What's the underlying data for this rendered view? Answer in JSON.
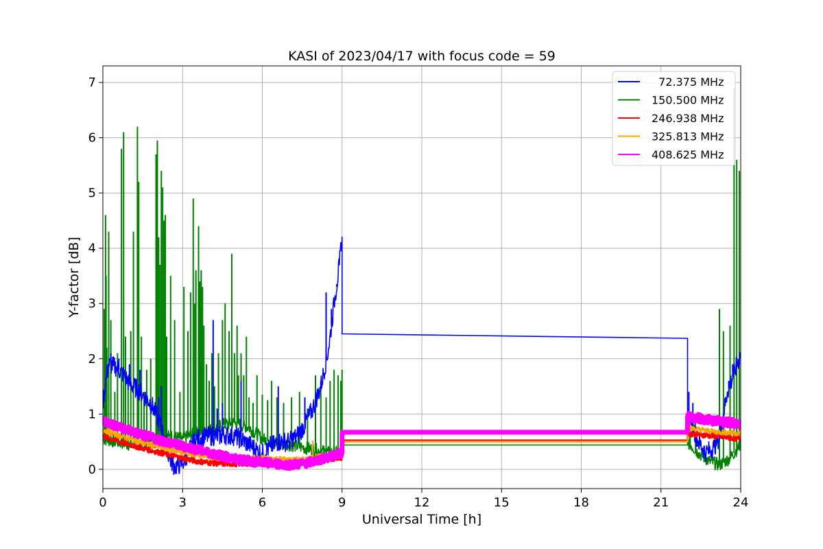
{
  "chart_data": {
    "type": "line",
    "title": "KASI of 2023/04/17 with focus code = 59",
    "xlabel": "Universal Time [h]",
    "ylabel": "Y-factor [dB]",
    "xlim": [
      0,
      24
    ],
    "ylim": [
      -0.35,
      7.3
    ],
    "xticks": [
      0,
      3,
      6,
      9,
      12,
      15,
      18,
      21,
      24
    ],
    "yticks": [
      0,
      1,
      2,
      3,
      4,
      5,
      6,
      7
    ],
    "grid": true,
    "legend_position": "top-right",
    "series": [
      {
        "name": "  72.375 MHz",
        "color": "#0000ff",
        "points": [
          [
            0,
            1.2
          ],
          [
            0.2,
            1.9
          ],
          [
            0.5,
            1.85
          ],
          [
            0.8,
            1.7
          ],
          [
            1.0,
            1.55
          ],
          [
            1.3,
            1.45
          ],
          [
            1.5,
            1.35
          ],
          [
            1.8,
            1.2
          ],
          [
            2.0,
            1.0
          ],
          [
            2.3,
            0.6
          ],
          [
            2.5,
            0.2
          ],
          [
            2.7,
            0.05
          ],
          [
            3.0,
            0.1
          ],
          [
            3.2,
            0.3
          ],
          [
            3.5,
            0.55
          ],
          [
            4.0,
            0.6
          ],
          [
            4.3,
            0.6
          ],
          [
            4.6,
            0.62
          ],
          [
            5.0,
            0.6
          ],
          [
            5.5,
            0.45
          ],
          [
            5.8,
            0.35
          ],
          [
            6.0,
            0.28
          ],
          [
            6.3,
            0.4
          ],
          [
            6.6,
            0.5
          ],
          [
            7.0,
            0.5
          ],
          [
            7.3,
            0.6
          ],
          [
            7.6,
            0.8
          ],
          [
            7.9,
            1.1
          ],
          [
            8.2,
            1.5
          ],
          [
            8.5,
            2.2
          ],
          [
            8.7,
            3.0
          ],
          [
            8.9,
            3.7
          ],
          [
            9.0,
            4.2
          ],
          [
            9.0,
            2.45
          ],
          [
            22.0,
            2.37
          ],
          [
            22.0,
            1.0
          ],
          [
            22.1,
            0.9
          ],
          [
            22.4,
            0.5
          ],
          [
            22.7,
            0.3
          ],
          [
            23.0,
            0.4
          ],
          [
            23.2,
            0.6
          ],
          [
            23.5,
            1.4
          ],
          [
            23.8,
            1.8
          ],
          [
            24.0,
            2.1
          ]
        ]
      },
      {
        "name": "150.500 MHz",
        "color": "#008000",
        "points": [
          [
            0,
            0.55
          ],
          [
            0.5,
            0.5
          ],
          [
            1.0,
            0.45
          ],
          [
            1.5,
            0.5
          ],
          [
            2.0,
            0.5
          ],
          [
            2.5,
            0.6
          ],
          [
            3.0,
            0.55
          ],
          [
            3.5,
            0.65
          ],
          [
            4.0,
            0.7
          ],
          [
            4.5,
            0.8
          ],
          [
            5.0,
            0.85
          ],
          [
            5.5,
            0.75
          ],
          [
            6.0,
            0.55
          ],
          [
            6.5,
            0.45
          ],
          [
            7.0,
            0.45
          ],
          [
            7.5,
            0.4
          ],
          [
            8.0,
            0.35
          ],
          [
            8.5,
            0.3
          ],
          [
            9.0,
            0.3
          ],
          [
            9.0,
            0.44
          ],
          [
            22.0,
            0.44
          ],
          [
            22.0,
            0.5
          ],
          [
            22.4,
            0.3
          ],
          [
            22.8,
            0.15
          ],
          [
            23.2,
            0.08
          ],
          [
            23.6,
            0.2
          ],
          [
            24.0,
            0.45
          ]
        ]
      },
      {
        "name": "246.938 MHz",
        "color": "#ff0000",
        "points": [
          [
            0,
            0.6
          ],
          [
            0.5,
            0.52
          ],
          [
            1.0,
            0.45
          ],
          [
            1.5,
            0.38
          ],
          [
            2.0,
            0.32
          ],
          [
            2.5,
            0.26
          ],
          [
            3.0,
            0.2
          ],
          [
            3.5,
            0.15
          ],
          [
            4.0,
            0.12
          ],
          [
            4.5,
            0.1
          ],
          [
            5.0,
            0.1
          ],
          [
            5.5,
            0.11
          ],
          [
            6.0,
            0.12
          ],
          [
            6.5,
            0.12
          ],
          [
            7.0,
            0.11
          ],
          [
            7.5,
            0.12
          ],
          [
            8.0,
            0.15
          ],
          [
            8.5,
            0.18
          ],
          [
            9.0,
            0.22
          ],
          [
            9.0,
            0.52
          ],
          [
            22.0,
            0.52
          ],
          [
            22.0,
            0.65
          ],
          [
            23.0,
            0.6
          ],
          [
            24.0,
            0.55
          ]
        ]
      },
      {
        "name": "325.813 MHz",
        "color": "#ffa500",
        "points": [
          [
            0,
            0.72
          ],
          [
            0.5,
            0.63
          ],
          [
            1.0,
            0.55
          ],
          [
            1.5,
            0.48
          ],
          [
            2.0,
            0.42
          ],
          [
            2.5,
            0.36
          ],
          [
            3.0,
            0.3
          ],
          [
            3.5,
            0.26
          ],
          [
            4.0,
            0.22
          ],
          [
            4.5,
            0.2
          ],
          [
            5.0,
            0.2
          ],
          [
            5.5,
            0.2
          ],
          [
            6.0,
            0.2
          ],
          [
            6.5,
            0.19
          ],
          [
            7.0,
            0.17
          ],
          [
            7.5,
            0.17
          ],
          [
            8.0,
            0.22
          ],
          [
            8.5,
            0.25
          ],
          [
            9.0,
            0.28
          ],
          [
            9.0,
            0.5
          ],
          [
            22.0,
            0.5
          ],
          [
            22.0,
            0.75
          ],
          [
            23.0,
            0.68
          ],
          [
            24.0,
            0.65
          ]
        ]
      },
      {
        "name": "408.625 MHz",
        "color": "#ff00ff",
        "points": [
          [
            0,
            0.88
          ],
          [
            0.5,
            0.78
          ],
          [
            1.0,
            0.7
          ],
          [
            1.5,
            0.62
          ],
          [
            2.0,
            0.55
          ],
          [
            2.5,
            0.48
          ],
          [
            3.0,
            0.42
          ],
          [
            3.5,
            0.36
          ],
          [
            4.0,
            0.3
          ],
          [
            4.5,
            0.24
          ],
          [
            5.0,
            0.18
          ],
          [
            5.5,
            0.15
          ],
          [
            6.0,
            0.12
          ],
          [
            6.5,
            0.1
          ],
          [
            7.0,
            0.08
          ],
          [
            7.5,
            0.1
          ],
          [
            8.0,
            0.15
          ],
          [
            8.5,
            0.22
          ],
          [
            9.0,
            0.3
          ],
          [
            9.0,
            0.67
          ],
          [
            22.0,
            0.67
          ],
          [
            22.0,
            0.95
          ],
          [
            23.0,
            0.88
          ],
          [
            24.0,
            0.82
          ]
        ]
      }
    ],
    "spikes": [
      {
        "series": 1,
        "x": [
          0.05,
          0.1,
          0.12,
          0.15,
          0.22,
          0.3,
          0.45,
          0.55,
          0.7,
          0.78,
          0.85,
          0.95,
          1.05,
          1.15,
          1.3,
          1.35,
          1.45,
          1.55,
          1.65,
          1.8,
          2.0,
          2.05,
          2.1,
          2.15,
          2.2,
          2.25,
          2.3,
          2.35,
          2.4,
          2.55,
          2.7,
          2.9,
          3.05,
          3.2,
          3.3,
          3.4,
          3.45,
          3.5,
          3.6,
          3.65,
          3.7,
          3.75,
          3.8,
          3.9,
          4.0,
          4.1,
          4.2,
          4.35,
          4.5,
          4.6,
          4.75,
          4.85,
          4.95,
          5.05,
          5.1,
          5.2,
          5.3,
          5.4,
          5.5,
          5.65,
          5.8,
          6.0,
          6.2,
          6.35,
          6.55,
          6.8,
          7.1,
          7.4,
          7.7,
          8.0,
          8.2,
          8.4,
          8.55,
          8.7,
          8.85,
          8.95,
          9.0
        ],
        "y": [
          2.9,
          4.6,
          3.5,
          2.2,
          4.3,
          2.7,
          1.4,
          2.1,
          5.8,
          6.1,
          2.4,
          1.5,
          2.5,
          4.3,
          6.2,
          5.2,
          2.4,
          1.4,
          1.8,
          2.0,
          5.7,
          5.95,
          4.2,
          3.7,
          5.4,
          5.1,
          4.5,
          4.6,
          2.4,
          3.5,
          2.7,
          1.4,
          3.3,
          2.5,
          3.2,
          4.9,
          3.0,
          3.6,
          4.4,
          3.4,
          3.6,
          3.3,
          2.6,
          1.9,
          1.6,
          2.1,
          1.5,
          2.1,
          2.7,
          3.0,
          2.5,
          3.9,
          2.1,
          2.6,
          1.7,
          2.1,
          1.7,
          2.4,
          1.3,
          1.2,
          1.7,
          1.35,
          1.25,
          1.6,
          1.3,
          1.2,
          1.3,
          1.4,
          1.1,
          1.7,
          1.6,
          1.3,
          1.6,
          1.8,
          1.7,
          1.6,
          1.8
        ]
      },
      {
        "series": 1,
        "x": [
          22.1,
          22.3,
          23.2,
          23.35,
          23.6,
          23.75,
          23.85,
          23.95
        ],
        "y": [
          0.8,
          1.0,
          2.9,
          2.5,
          2.6,
          6.9,
          5.6,
          5.4
        ]
      },
      {
        "series": 0,
        "x": [
          0.3,
          0.4,
          0.6,
          1.0,
          1.4,
          2.1,
          2.2,
          4.15,
          4.3,
          4.5,
          5.2,
          6.6,
          7.6,
          8.4,
          8.6,
          8.8,
          22.05,
          22.2,
          23.55,
          23.7
        ],
        "y": [
          2.1,
          2.0,
          2.0,
          1.9,
          1.8,
          1.3,
          1.5,
          2.7,
          1.1,
          1.2,
          1.6,
          1.5,
          1.3,
          3.2,
          2.9,
          3.3,
          1.4,
          1.2,
          1.6,
          1.9
        ]
      },
      {
        "series": 3,
        "x": [
          7.9
        ],
        "y": [
          0.52
        ]
      }
    ]
  }
}
